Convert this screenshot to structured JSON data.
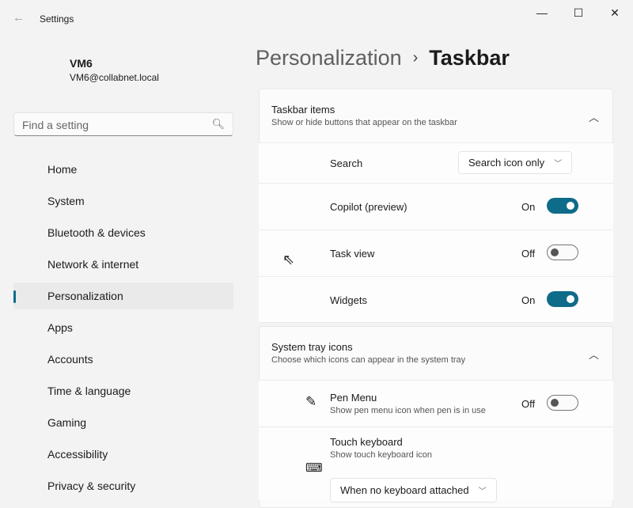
{
  "window": {
    "title": "Settings",
    "minimize": "—",
    "maximize": "☐",
    "close": "✕"
  },
  "user": {
    "name": "VM6",
    "email": "VM6@collabnet.local"
  },
  "search": {
    "placeholder": "Find a setting"
  },
  "nav": [
    {
      "label": "Home"
    },
    {
      "label": "System"
    },
    {
      "label": "Bluetooth & devices"
    },
    {
      "label": "Network & internet"
    },
    {
      "label": "Personalization",
      "selected": true
    },
    {
      "label": "Apps"
    },
    {
      "label": "Accounts"
    },
    {
      "label": "Time & language"
    },
    {
      "label": "Gaming"
    },
    {
      "label": "Accessibility"
    },
    {
      "label": "Privacy & security"
    }
  ],
  "breadcrumb": {
    "parent": "Personalization",
    "sep": "›",
    "current": "Taskbar"
  },
  "taskbar_items": {
    "title": "Taskbar items",
    "subtitle": "Show or hide buttons that appear on the taskbar",
    "search": {
      "label": "Search",
      "value": "Search icon only"
    },
    "copilot": {
      "label": "Copilot (preview)",
      "state": "On"
    },
    "taskview": {
      "label": "Task view",
      "state": "Off"
    },
    "widgets": {
      "label": "Widgets",
      "state": "On"
    }
  },
  "tray": {
    "title": "System tray icons",
    "subtitle": "Choose which icons can appear in the system tray",
    "pen": {
      "label": "Pen Menu",
      "desc": "Show pen menu icon when pen is in use",
      "state": "Off"
    },
    "keyboard": {
      "label": "Touch keyboard",
      "desc": "Show touch keyboard icon",
      "value": "When no keyboard attached"
    }
  },
  "accent": "#0f6b8a"
}
